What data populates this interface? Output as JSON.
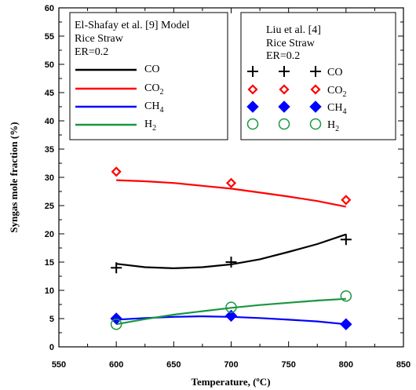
{
  "chart_data": {
    "type": "scatter",
    "xlabel": "Temperature, (ºC)",
    "ylabel": "Syngas mole fraction (%)",
    "xlim": [
      550,
      850
    ],
    "ylim": [
      0,
      60
    ],
    "xticks": [
      550,
      600,
      650,
      700,
      750,
      800,
      850
    ],
    "yticks": [
      0,
      5,
      10,
      15,
      20,
      25,
      30,
      35,
      40,
      45,
      50,
      55,
      60
    ],
    "grid": false,
    "model_legend": {
      "title_lines": [
        "El-Shafay et al. [9] Model",
        "Rice Straw",
        "ER=0.2"
      ],
      "placement": "top-left",
      "entries": [
        {
          "label": "CO",
          "sub": ""
        },
        {
          "label": "CO",
          "sub": "2"
        },
        {
          "label": "CH",
          "sub": "4"
        },
        {
          "label": "H",
          "sub": "2"
        }
      ]
    },
    "exp_legend": {
      "title_lines": [
        "Liu et al. [4]",
        "Rice Straw",
        "ER=0.2"
      ],
      "placement": "top-right",
      "entries": [
        {
          "label": "CO",
          "sub": ""
        },
        {
          "label": "CO",
          "sub": "2"
        },
        {
          "label": "CH",
          "sub": "4"
        },
        {
          "label": "H",
          "sub": "2"
        }
      ]
    },
    "model_series": [
      {
        "name": "CO",
        "color": "#000000",
        "x": [
          600,
          625,
          650,
          675,
          700,
          725,
          750,
          775,
          800
        ],
        "values": [
          14.7,
          14.1,
          13.9,
          14.1,
          14.6,
          15.5,
          16.8,
          18.2,
          19.9
        ]
      },
      {
        "name": "CO2",
        "color": "#ff0000",
        "x": [
          600,
          625,
          650,
          675,
          700,
          725,
          750,
          775,
          800
        ],
        "values": [
          29.5,
          29.3,
          29.0,
          28.5,
          28.0,
          27.3,
          26.6,
          25.8,
          24.8
        ]
      },
      {
        "name": "CH4",
        "color": "#0000ff",
        "x": [
          600,
          625,
          650,
          675,
          700,
          725,
          750,
          775,
          800
        ],
        "values": [
          4.8,
          5.1,
          5.3,
          5.4,
          5.3,
          5.1,
          4.8,
          4.5,
          4.0
        ]
      },
      {
        "name": "H2",
        "color": "#1a9641",
        "x": [
          600,
          625,
          650,
          675,
          700,
          725,
          750,
          775,
          800
        ],
        "values": [
          4.0,
          4.9,
          5.7,
          6.3,
          6.9,
          7.4,
          7.8,
          8.2,
          8.5
        ]
      }
    ],
    "exp_series": [
      {
        "name": "CO",
        "marker": "plus",
        "color": "#000000",
        "x": [
          600,
          700,
          800
        ],
        "values": [
          14,
          15,
          19
        ]
      },
      {
        "name": "CO2",
        "marker": "diamond-open",
        "color": "#ff0000",
        "x": [
          600,
          700,
          800
        ],
        "values": [
          31,
          29,
          26
        ]
      },
      {
        "name": "CH4",
        "marker": "diamond-filled",
        "color": "#0000ff",
        "x": [
          600,
          700,
          800
        ],
        "values": [
          5,
          5.5,
          4
        ]
      },
      {
        "name": "H2",
        "marker": "circle-open",
        "color": "#1a9641",
        "x": [
          600,
          700,
          800
        ],
        "values": [
          4,
          7,
          9
        ]
      }
    ]
  }
}
